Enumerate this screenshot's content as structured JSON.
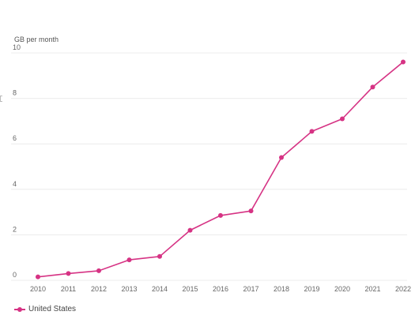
{
  "chart_data": {
    "type": "line",
    "ylabel": "GB per month",
    "x": [
      "2010",
      "2011",
      "2012",
      "2013",
      "2014",
      "2015",
      "2016",
      "2017",
      "2018",
      "2019",
      "2020",
      "2021",
      "2022"
    ],
    "y_ticks": [
      "0",
      "2",
      "4",
      "6",
      "8",
      "10"
    ],
    "ylim": [
      0,
      10
    ],
    "grid": true,
    "series": [
      {
        "name": "United States",
        "color": "#d63384",
        "values": [
          0.15,
          0.3,
          0.42,
          0.9,
          1.05,
          2.2,
          2.85,
          3.05,
          5.4,
          6.55,
          7.1,
          8.5,
          9.6
        ]
      }
    ],
    "legend": "bottom-left"
  }
}
